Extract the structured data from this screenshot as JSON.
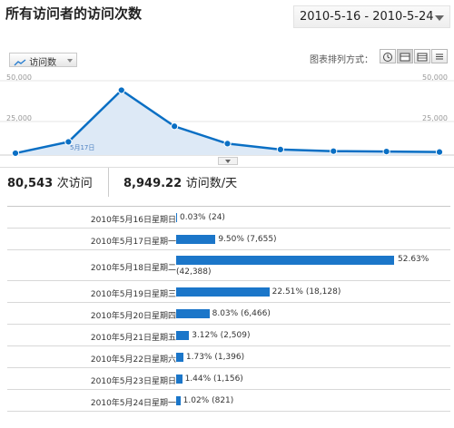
{
  "page": {
    "title": "所有访问者的访问次数",
    "date_range": "2010-5-16 - 2010-5-24"
  },
  "toolbar": {
    "metric_label": "访问数",
    "chart_options_label": "图表排列方式："
  },
  "axis": {
    "left": [
      "50,000",
      "25,000"
    ],
    "right": [
      "50,000",
      "25,000"
    ]
  },
  "chart_tooltip": "5月17日",
  "summary": {
    "visits_value": "80,543",
    "visits_unit": "次访问",
    "per_day_value": "8,949.22",
    "per_day_unit": "访问数/天"
  },
  "colors": {
    "line": "#0a6fc4",
    "fill": "#dde9f6",
    "bar": "#1b76c9"
  },
  "chart_data": {
    "type": "line",
    "x": [
      "2010-5-16",
      "2010-5-17",
      "2010-5-18",
      "2010-5-19",
      "2010-5-20",
      "2010-5-21",
      "2010-5-22",
      "2010-5-23",
      "2010-5-24"
    ],
    "series": [
      {
        "values": [
          24,
          7655,
          42388,
          18128,
          6466,
          2509,
          1396,
          1156,
          821
        ]
      }
    ],
    "ylim": [
      0,
      50000
    ]
  },
  "table": {
    "rows": [
      {
        "date": "2010年5月16日星期日",
        "value_label": "0.03% (24)",
        "pct": 0.0003
      },
      {
        "date": "2010年5月17日星期一",
        "value_label": "9.50% (7,655)",
        "pct": 0.095
      },
      {
        "date": "2010年5月18日星期二",
        "value_label": "52.63%",
        "value_label2": "(42,388)",
        "pct": 0.5263
      },
      {
        "date": "2010年5月19日星期三",
        "value_label": "22.51% (18,128)",
        "pct": 0.2251
      },
      {
        "date": "2010年5月20日星期四",
        "value_label": "8.03% (6,466)",
        "pct": 0.0803
      },
      {
        "date": "2010年5月21日星期五",
        "value_label": "3.12% (2,509)",
        "pct": 0.0312
      },
      {
        "date": "2010年5月22日星期六",
        "value_label": "1.73% (1,396)",
        "pct": 0.0173
      },
      {
        "date": "2010年5月23日星期日",
        "value_label": "1.44% (1,156)",
        "pct": 0.0144
      },
      {
        "date": "2010年5月24日星期一",
        "value_label": "1.02% (821)",
        "pct": 0.0102
      }
    ]
  }
}
